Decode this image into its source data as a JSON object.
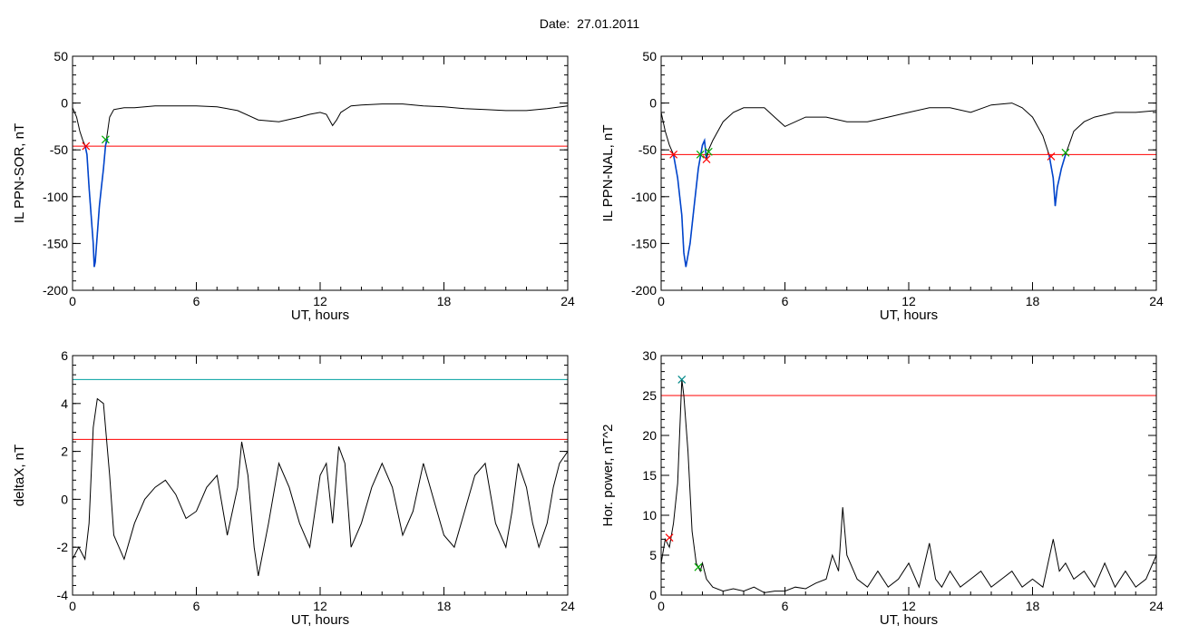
{
  "page": {
    "title": "Date:  27.01.2011"
  },
  "chart_data": [
    {
      "type": "line",
      "ylabel": "IL PPN-SOR, nT",
      "xlabel": "UT, hours",
      "xlim": [
        0,
        24
      ],
      "ylim": [
        -200,
        50
      ],
      "xticks": [
        0,
        6,
        12,
        18,
        24
      ],
      "yticks": [
        -200,
        -150,
        -100,
        -50,
        0,
        50
      ],
      "series": [
        {
          "color": "#000000",
          "x": [
            0,
            0.2,
            0.35,
            0.5,
            0.6,
            0.7,
            0.8,
            0.9,
            1.0,
            1.05,
            1.1,
            1.2,
            1.3,
            1.4,
            1.5,
            1.6,
            1.7,
            1.8,
            2,
            2.5,
            3,
            4,
            5,
            6,
            7,
            7.5,
            8,
            9,
            10,
            11,
            11.5,
            12,
            12.3,
            12.6,
            12.8,
            13,
            13.5,
            14,
            15,
            16,
            17,
            18,
            19,
            20,
            21,
            22,
            23,
            24
          ],
          "y": [
            -5,
            -15,
            -30,
            -40,
            -45,
            -55,
            -90,
            -120,
            -150,
            -175,
            -170,
            -140,
            -110,
            -90,
            -70,
            -45,
            -30,
            -15,
            -7,
            -5,
            -5,
            -3,
            -3,
            -3,
            -4,
            -6,
            -8,
            -18,
            -20,
            -15,
            -12,
            -10,
            -12,
            -24,
            -18,
            -10,
            -3,
            -2,
            -1,
            -1,
            -3,
            -4,
            -6,
            -7,
            -8,
            -8,
            -6,
            -3
          ]
        },
        {
          "color": "#0044cc",
          "x": [
            0.6,
            0.7,
            0.8,
            0.9,
            1.0,
            1.05,
            1.1,
            1.2,
            1.3,
            1.4,
            1.5,
            1.6,
            1.7
          ],
          "y": [
            -45,
            -55,
            -90,
            -120,
            -150,
            -175,
            -170,
            -140,
            -110,
            -90,
            -70,
            -45,
            -38
          ]
        }
      ],
      "thresholds": [
        {
          "color": "#ff0000",
          "y": -46
        }
      ],
      "markers": [
        {
          "color": "#ff0000",
          "x": 0.65,
          "y": -46
        },
        {
          "color": "#00aa00",
          "x": 1.6,
          "y": -39
        }
      ]
    },
    {
      "type": "line",
      "ylabel": "IL PPN-NAL, nT",
      "xlabel": "UT, hours",
      "xlim": [
        0,
        24
      ],
      "ylim": [
        -200,
        50
      ],
      "xticks": [
        0,
        6,
        12,
        18,
        24
      ],
      "yticks": [
        -200,
        -150,
        -100,
        -50,
        0,
        50
      ],
      "series": [
        {
          "color": "#000000",
          "x": [
            0,
            0.2,
            0.4,
            0.6,
            0.8,
            1,
            1.1,
            1.2,
            1.4,
            1.6,
            1.8,
            2,
            2.1,
            2.2,
            2.3,
            2.5,
            3,
            3.5,
            4,
            5,
            5.5,
            6,
            7,
            8,
            9,
            10,
            11,
            12,
            13,
            14,
            15,
            16,
            17,
            17.5,
            18,
            18.5,
            18.8,
            19.0,
            19.1,
            19.2,
            19.3,
            19.4,
            19.6,
            20,
            20.5,
            21,
            22,
            23,
            24
          ],
          "y": [
            -10,
            -30,
            -45,
            -55,
            -80,
            -120,
            -160,
            -175,
            -150,
            -110,
            -70,
            -45,
            -40,
            -60,
            -50,
            -40,
            -20,
            -10,
            -5,
            -5,
            -15,
            -25,
            -15,
            -15,
            -20,
            -20,
            -15,
            -10,
            -5,
            -5,
            -10,
            -2,
            0,
            -5,
            -15,
            -35,
            -55,
            -80,
            -110,
            -90,
            -80,
            -70,
            -55,
            -30,
            -20,
            -15,
            -10,
            -10,
            -8
          ]
        },
        {
          "color": "#0044cc",
          "x": [
            0.6,
            0.8,
            1,
            1.1,
            1.2,
            1.4,
            1.6,
            1.8,
            2,
            2.1,
            2.2
          ],
          "y": [
            -55,
            -80,
            -120,
            -160,
            -175,
            -150,
            -110,
            -70,
            -45,
            -40,
            -60
          ]
        },
        {
          "color": "#0044cc",
          "x": [
            18.8,
            19.0,
            19.1,
            19.2,
            19.3,
            19.4,
            19.6
          ],
          "y": [
            -55,
            -80,
            -110,
            -90,
            -80,
            -70,
            -55
          ]
        }
      ],
      "thresholds": [
        {
          "color": "#ff0000",
          "y": -55
        }
      ],
      "markers": [
        {
          "color": "#ff0000",
          "x": 0.6,
          "y": -55
        },
        {
          "color": "#00aa00",
          "x": 1.9,
          "y": -55
        },
        {
          "color": "#ff0000",
          "x": 2.2,
          "y": -60
        },
        {
          "color": "#00aa00",
          "x": 2.3,
          "y": -52
        },
        {
          "color": "#ff0000",
          "x": 18.9,
          "y": -57
        },
        {
          "color": "#00aa00",
          "x": 19.6,
          "y": -53
        }
      ]
    },
    {
      "type": "line",
      "ylabel": "deltaX, nT",
      "xlabel": "UT, hours",
      "xlim": [
        0,
        24
      ],
      "ylim": [
        -4,
        6
      ],
      "xticks": [
        0,
        6,
        12,
        18,
        24
      ],
      "yticks": [
        -4,
        -2,
        0,
        2,
        4,
        6
      ],
      "series": [
        {
          "color": "#000000",
          "x": [
            0,
            0.3,
            0.6,
            0.8,
            1,
            1.2,
            1.5,
            1.8,
            2,
            2.5,
            3,
            3.5,
            4,
            4.5,
            5,
            5.5,
            6,
            6.5,
            7,
            7.5,
            8,
            8.2,
            8.5,
            8.8,
            9,
            9.5,
            10,
            10.5,
            11,
            11.5,
            12,
            12.3,
            12.6,
            12.9,
            13.2,
            13.5,
            14,
            14.5,
            15,
            15.5,
            16,
            16.5,
            17,
            17.5,
            18,
            18.5,
            19,
            19.5,
            20,
            20.5,
            21,
            21.3,
            21.6,
            22,
            22.3,
            22.6,
            23,
            23.3,
            23.6,
            24
          ],
          "y": [
            -2.5,
            -2,
            -2.5,
            -1,
            3,
            4.2,
            4,
            1,
            -1.5,
            -2.5,
            -1,
            0,
            0.5,
            0.8,
            0.2,
            -0.8,
            -0.5,
            0.5,
            1,
            -1.5,
            0.5,
            2.4,
            1,
            -2,
            -3.2,
            -1,
            1.5,
            0.5,
            -1,
            -2,
            1,
            1.5,
            -1,
            2.2,
            1.5,
            -2,
            -1,
            0.5,
            1.5,
            0.5,
            -1.5,
            -0.5,
            1.5,
            0,
            -1.5,
            -2,
            -0.5,
            1,
            1.5,
            -1,
            -2,
            -0.5,
            1.5,
            0.5,
            -1,
            -2,
            -1,
            0.5,
            1.5,
            2
          ]
        }
      ],
      "thresholds": [
        {
          "color": "#ff0000",
          "y": 2.5
        },
        {
          "color": "#00a0a0",
          "y": 5
        }
      ],
      "markers": []
    },
    {
      "type": "line",
      "ylabel": "Hor. power, nT^2",
      "xlabel": "UT, hours",
      "xlim": [
        0,
        24
      ],
      "ylim": [
        0,
        30
      ],
      "xticks": [
        0,
        6,
        12,
        18,
        24
      ],
      "yticks": [
        0,
        5,
        10,
        15,
        20,
        25,
        30
      ],
      "series": [
        {
          "color": "#000000",
          "x": [
            0,
            0.2,
            0.4,
            0.6,
            0.8,
            1,
            1.1,
            1.3,
            1.5,
            1.7,
            1.9,
            2,
            2.2,
            2.5,
            3,
            3.5,
            4,
            4.5,
            5,
            5.5,
            6,
            6.5,
            7,
            7.5,
            8,
            8.3,
            8.6,
            8.8,
            9,
            9.5,
            10,
            10.5,
            11,
            11.5,
            12,
            12.5,
            13,
            13.3,
            13.6,
            14,
            14.5,
            15,
            15.5,
            16,
            16.5,
            17,
            17.5,
            18,
            18.5,
            19,
            19.3,
            19.6,
            20,
            20.5,
            21,
            21.5,
            22,
            22.5,
            23,
            23.5,
            24
          ],
          "y": [
            4,
            7,
            6,
            9,
            14,
            27,
            25,
            18,
            8,
            4,
            3,
            4,
            2,
            1,
            0.5,
            0.8,
            0.5,
            1,
            0.3,
            0.5,
            0.5,
            1,
            0.8,
            1.5,
            2,
            5,
            3,
            11,
            5,
            2,
            1,
            3,
            1,
            2,
            4,
            1,
            6.5,
            2,
            1,
            3,
            1,
            2,
            3,
            1,
            2,
            3,
            1,
            2,
            1,
            7,
            3,
            4,
            2,
            3,
            1,
            4,
            1,
            3,
            1,
            2,
            5
          ]
        }
      ],
      "thresholds": [
        {
          "color": "#ff0000",
          "y": 25
        }
      ],
      "markers": [
        {
          "color": "#ff0000",
          "x": 0.4,
          "y": 7.2
        },
        {
          "color": "#008888",
          "x": 1.0,
          "y": 27
        },
        {
          "color": "#00aa00",
          "x": 1.8,
          "y": 3.5
        }
      ]
    }
  ]
}
